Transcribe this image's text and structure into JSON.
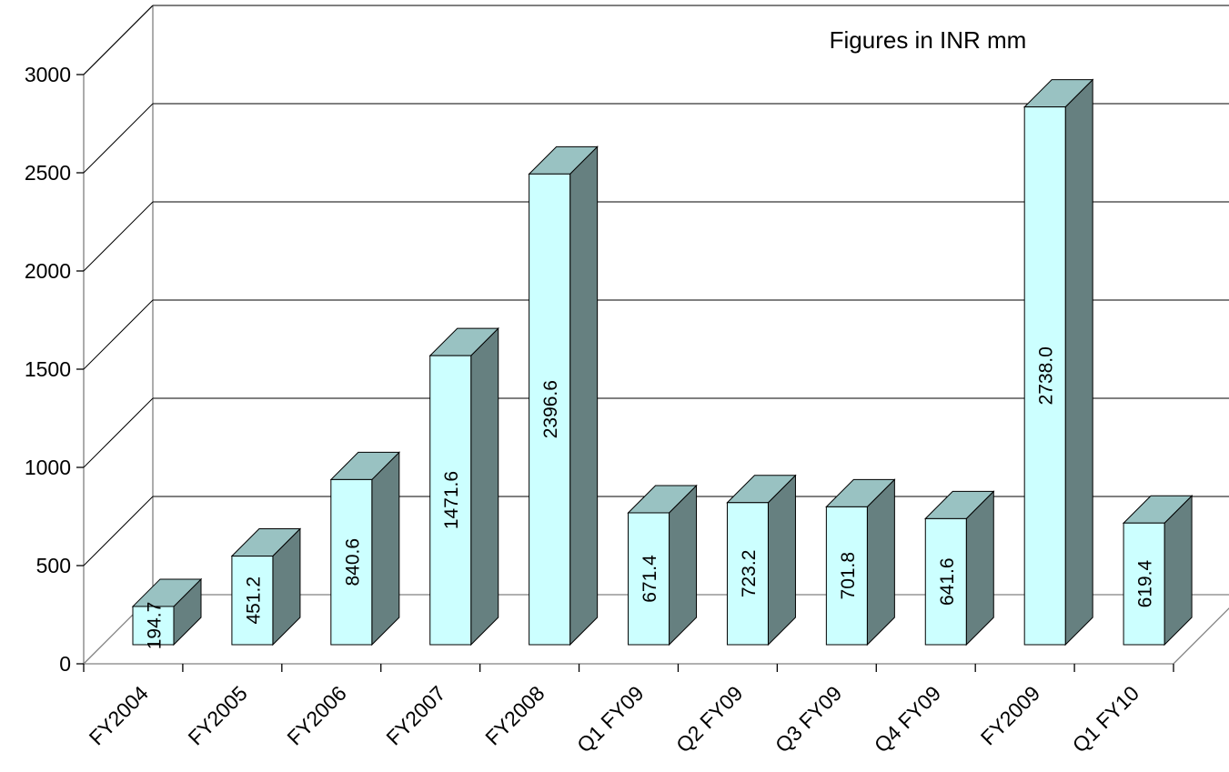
{
  "note": "Figures in INR mm",
  "chart_data": {
    "type": "bar",
    "categories": [
      "FY2004",
      "FY2005",
      "FY2006",
      "FY2007",
      "FY2008",
      "Q1 FY09",
      "Q2 FY09",
      "Q3 FY09",
      "Q4 FY09",
      "FY2009",
      "Q1 FY10"
    ],
    "values": [
      194.7,
      451.2,
      840.6,
      1471.6,
      2396.6,
      671.4,
      723.2,
      701.8,
      641.6,
      2738.0,
      619.4
    ],
    "value_labels": [
      "194.7",
      "451.2",
      "840.6",
      "1471.6",
      "2396.6",
      "671.4",
      "723.2",
      "701.8",
      "641.6",
      "2738.0",
      "619.4"
    ],
    "y_ticks": [
      0,
      500,
      1000,
      1500,
      2000,
      2500,
      3000
    ],
    "y_tick_labels": [
      "0",
      "500",
      "1000",
      "1500",
      "2000",
      "2500",
      "3000"
    ],
    "ylim": [
      0,
      3000
    ],
    "grid": true,
    "legend": "none",
    "colors": {
      "front": "#ccffff",
      "top": "#99c2c2",
      "side": "#668080"
    }
  }
}
